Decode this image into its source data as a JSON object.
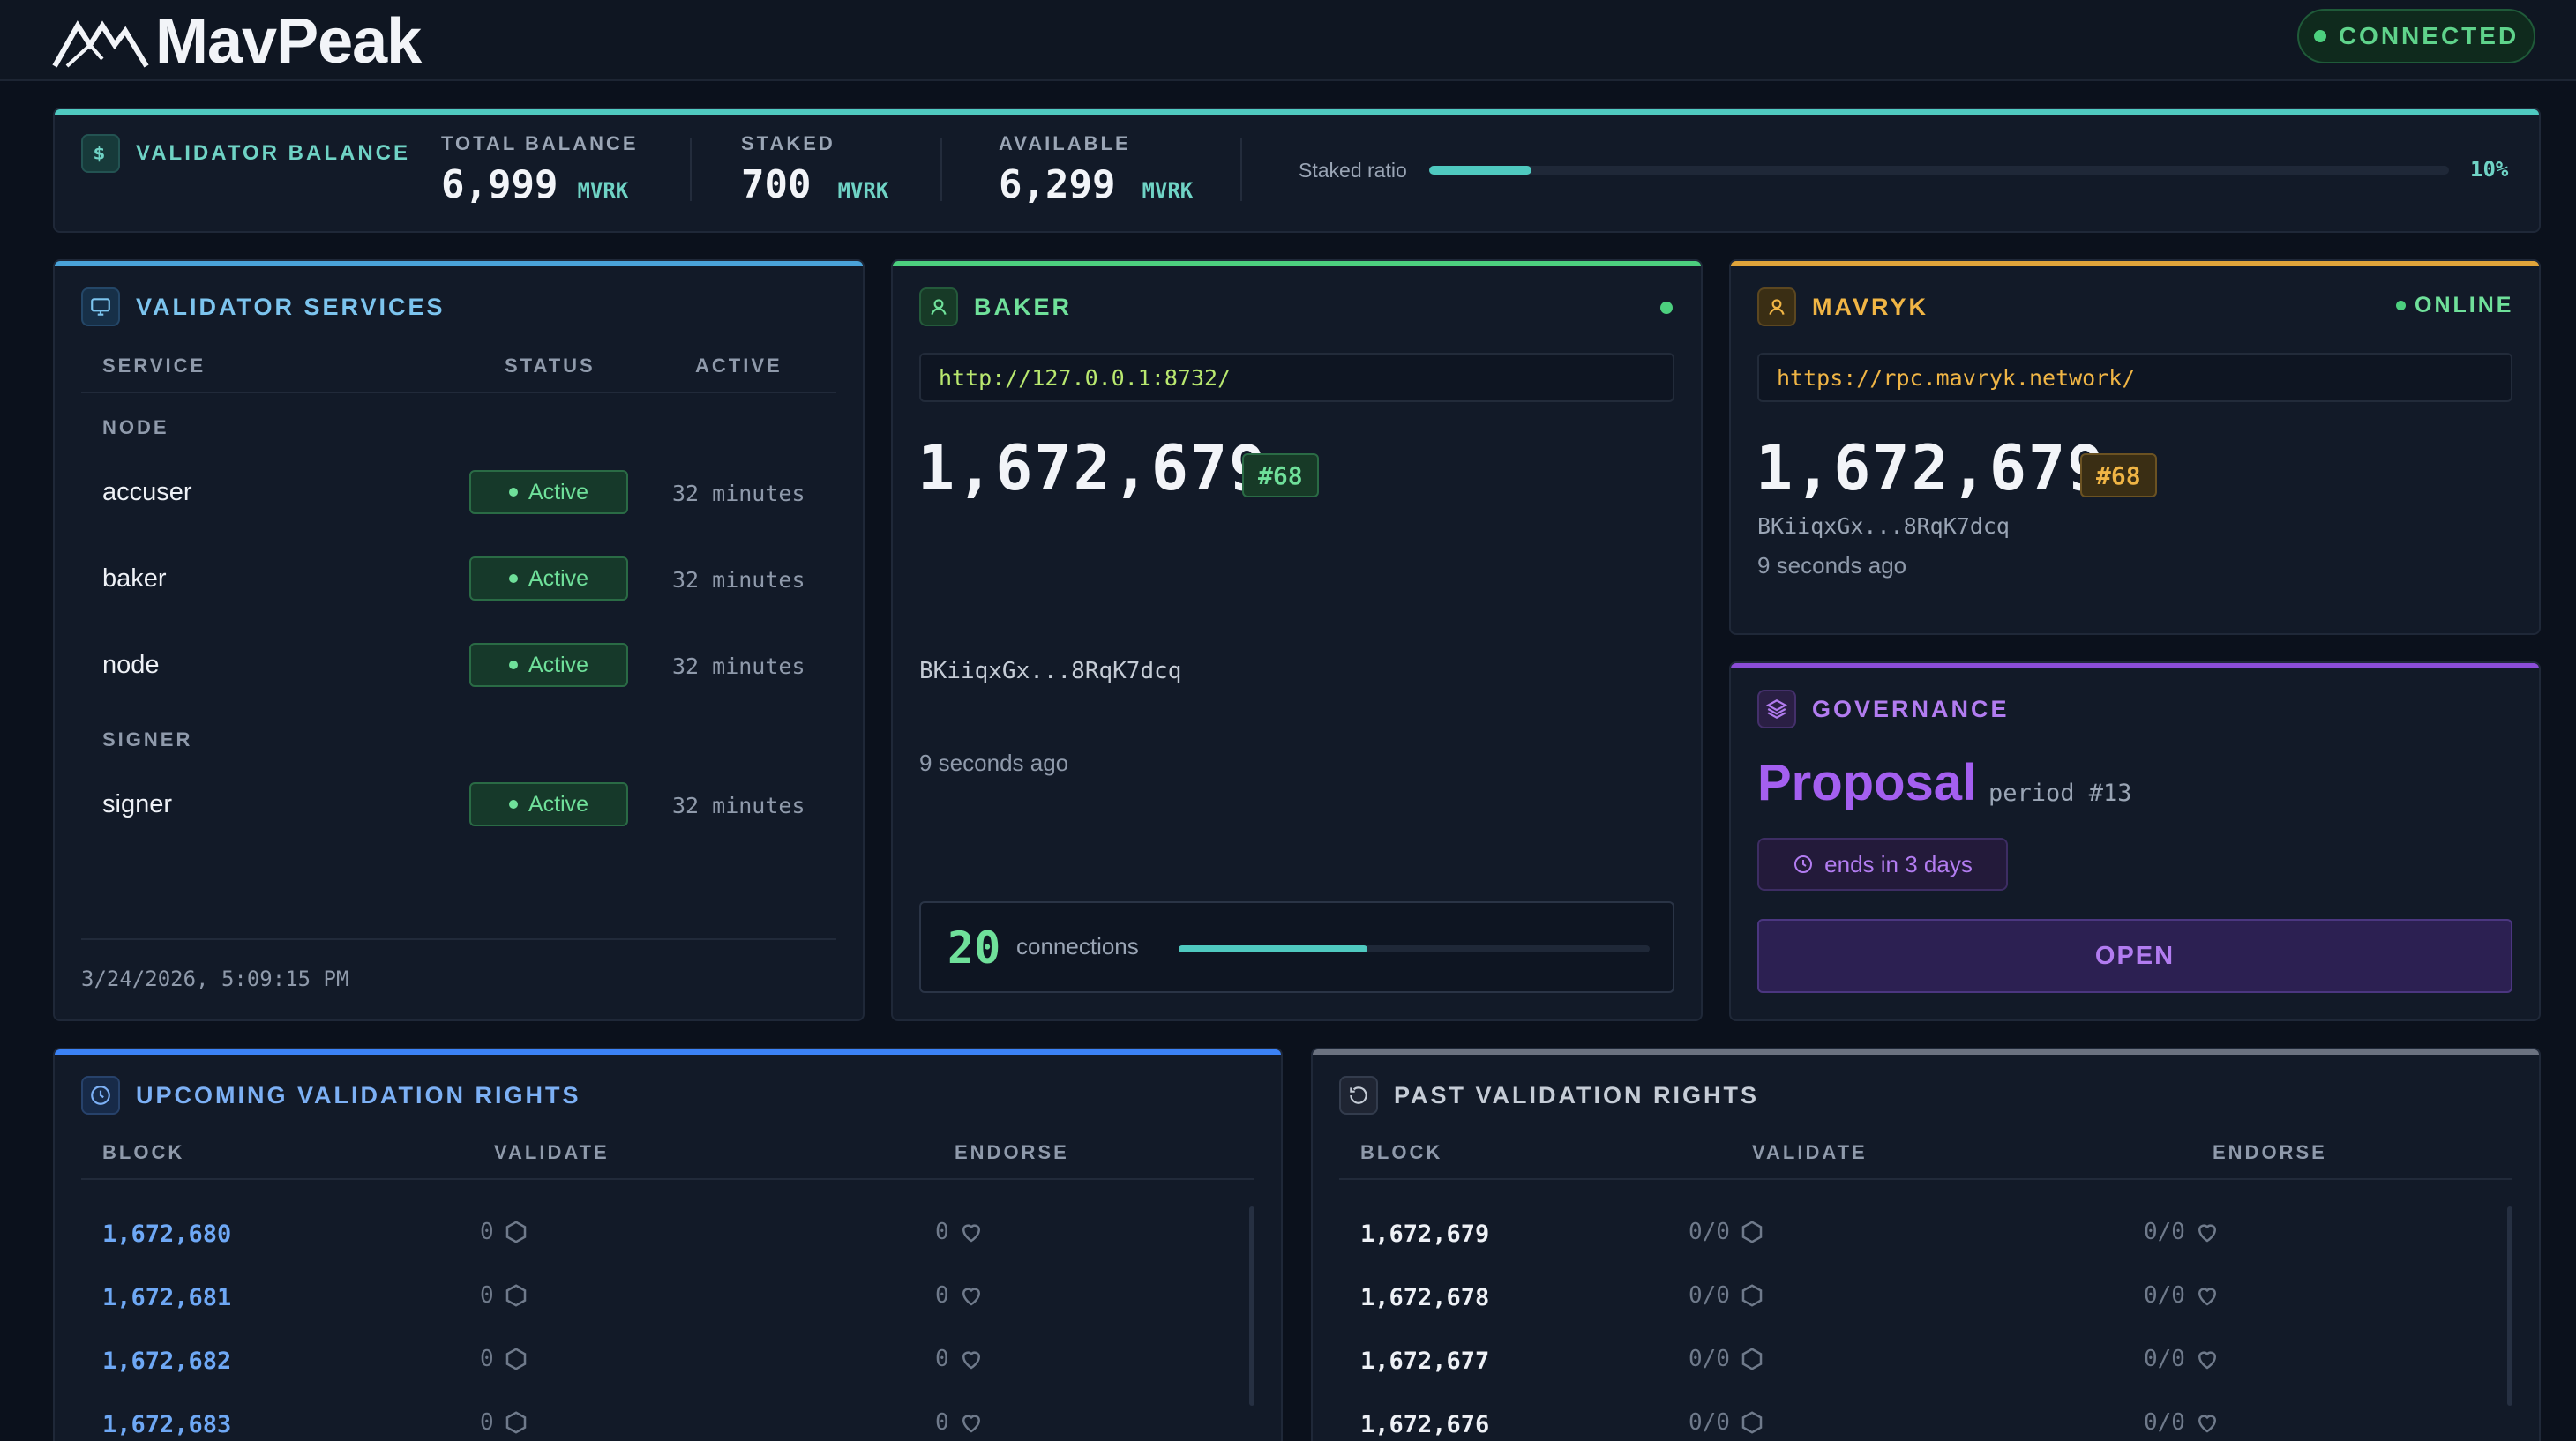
{
  "header": {
    "brand": "MavPeak",
    "status": "CONNECTED"
  },
  "balance": {
    "title": "VALIDATOR BALANCE",
    "total_label": "TOTAL BALANCE",
    "total_value": "6,999",
    "staked_label": "STAKED",
    "staked_value": "700",
    "available_label": "AVAILABLE",
    "available_value": "6,299",
    "unit": "MVRK",
    "ratio_label": "Staked ratio",
    "ratio_value": "10%",
    "ratio_fraction": 0.1
  },
  "services": {
    "title": "VALIDATOR SERVICES",
    "col_service": "SERVICE",
    "col_status": "STATUS",
    "col_active": "ACTIVE",
    "groups": [
      {
        "name": "NODE",
        "items": [
          {
            "name": "accuser",
            "status": "Active",
            "active": "32 minutes"
          },
          {
            "name": "baker",
            "status": "Active",
            "active": "32 minutes"
          },
          {
            "name": "node",
            "status": "Active",
            "active": "32 minutes"
          }
        ]
      },
      {
        "name": "SIGNER",
        "items": [
          {
            "name": "signer",
            "status": "Active",
            "active": "32 minutes"
          }
        ]
      }
    ],
    "timestamp": "3/24/2026, 5:09:15 PM"
  },
  "baker": {
    "title": "BAKER",
    "url": "http://127.0.0.1:8732/",
    "block": "1,672,679",
    "badge": "#68",
    "hash": "BKiiqxGx...8RqK7dcq",
    "age": "9 seconds ago",
    "connections": "20",
    "connections_label": "connections",
    "connections_fraction": 0.4
  },
  "mavryk": {
    "title": "MAVRYK",
    "status": "ONLINE",
    "url": "https://rpc.mavryk.network/",
    "block": "1,672,679",
    "badge": "#68",
    "hash": "BKiiqxGx...8RqK7dcq",
    "age": "9 seconds ago"
  },
  "governance": {
    "title": "GOVERNANCE",
    "phase": "Proposal",
    "period": "period #13",
    "ends": "ends in 3 days",
    "button": "OPEN"
  },
  "upcoming": {
    "title": "UPCOMING VALIDATION RIGHTS",
    "col_block": "BLOCK",
    "col_validate": "VALIDATE",
    "col_endorse": "ENDORSE",
    "rows": [
      {
        "block": "1,672,680",
        "validate": "0",
        "endorse": "0"
      },
      {
        "block": "1,672,681",
        "validate": "0",
        "endorse": "0"
      },
      {
        "block": "1,672,682",
        "validate": "0",
        "endorse": "0"
      },
      {
        "block": "1,672,683",
        "validate": "0",
        "endorse": "0"
      }
    ]
  },
  "past": {
    "title": "PAST VALIDATION RIGHTS",
    "col_block": "BLOCK",
    "col_validate": "VALIDATE",
    "col_endorse": "ENDORSE",
    "rows": [
      {
        "block": "1,672,679",
        "validate": "0/0",
        "endorse": "0/0"
      },
      {
        "block": "1,672,678",
        "validate": "0/0",
        "endorse": "0/0"
      },
      {
        "block": "1,672,677",
        "validate": "0/0",
        "endorse": "0/0"
      },
      {
        "block": "1,672,676",
        "validate": "0/0",
        "endorse": "0/0"
      }
    ]
  },
  "colors": {
    "teal": "#4fc9c0",
    "blue_line": "#4aa3d9",
    "green_line": "#4ccf7e",
    "amber_line": "#e0a43a",
    "purple_line": "#8b4dd8",
    "upcoming_line": "#3b82f6",
    "past_line": "#6b7280"
  }
}
